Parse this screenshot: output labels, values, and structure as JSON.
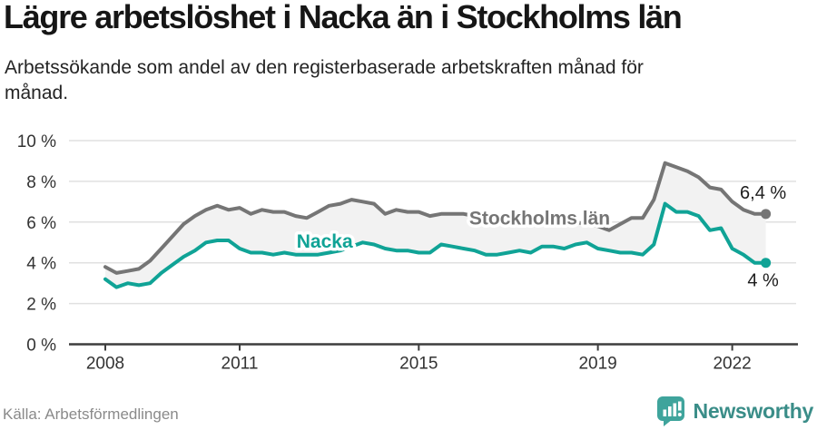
{
  "header": {
    "title": "Lägre arbetslöshet i Nacka än i Stockholms län",
    "subtitle_line1": "Arbetssökande som andel av den registerbaserade arbetskraften månad för",
    "subtitle_line2": "månad."
  },
  "footer": {
    "source": "Källa: Arbetsförmedlingen",
    "brand": "Newsworthy"
  },
  "colors": {
    "nacka": "#10a396",
    "stockholm": "#757575",
    "fill_between": "#f2f2f2",
    "gridline": "#e0e0e0",
    "axis": "#3d3d3d",
    "tick_label": "#333333",
    "end_label": "#1c1c1c",
    "brand_icon": "#3fa49c",
    "brand_text": "#3a8d88"
  },
  "chart_data": {
    "type": "line",
    "title": "Lägre arbetslöshet i Nacka än i Stockholms län",
    "subtitle": "Arbetssökande som andel av den registerbaserade arbetskraften månad för månad.",
    "xlabel": "",
    "ylabel": "",
    "grid": "horizontal",
    "legend": "inline-labels",
    "xlim": [
      2008,
      2022.75
    ],
    "ylim": [
      0,
      10
    ],
    "x_start": 2008,
    "x_step_years": 0.25,
    "y_ticks": [
      {
        "value": 0,
        "label": "0 %"
      },
      {
        "value": 2,
        "label": "2 %"
      },
      {
        "value": 4,
        "label": "4 %"
      },
      {
        "value": 6,
        "label": "6 %"
      },
      {
        "value": 8,
        "label": "8 %"
      },
      {
        "value": 10,
        "label": "10 %"
      }
    ],
    "x_ticks": [
      {
        "year": 2008,
        "label": "2008"
      },
      {
        "year": 2011,
        "label": "2011"
      },
      {
        "year": 2015,
        "label": "2015"
      },
      {
        "year": 2019,
        "label": "2019"
      },
      {
        "year": 2022,
        "label": "2022"
      }
    ],
    "series": [
      {
        "name": "Stockholms län",
        "slug": "stockholms-lan",
        "color": "#757575",
        "end_label": "6,4 %",
        "end_value": 6.4,
        "label_at": {
          "year": 2017.7,
          "value": 6.2
        },
        "values": [
          3.8,
          3.5,
          3.6,
          3.7,
          4.1,
          4.7,
          5.3,
          5.9,
          6.3,
          6.6,
          6.8,
          6.6,
          6.7,
          6.4,
          6.6,
          6.5,
          6.5,
          6.3,
          6.2,
          6.5,
          6.8,
          6.9,
          7.1,
          7.0,
          6.9,
          6.4,
          6.6,
          6.5,
          6.5,
          6.3,
          6.4,
          6.4,
          6.4,
          6.3,
          6.3,
          6.3,
          6.3,
          6.3,
          6.3,
          6.2,
          6.2,
          6.1,
          6.0,
          5.9,
          5.8,
          5.6,
          5.9,
          6.2,
          6.2,
          7.1,
          8.9,
          8.7,
          8.5,
          8.2,
          7.7,
          7.6,
          7.0,
          6.6,
          6.4,
          6.4
        ]
      },
      {
        "name": "Nacka",
        "slug": "nacka",
        "color": "#10a396",
        "end_label": "4 %",
        "end_value": 4.0,
        "label_at": {
          "year": 2012.9,
          "value": 5.05
        },
        "values": [
          3.2,
          2.8,
          3.0,
          2.9,
          3.0,
          3.5,
          3.9,
          4.3,
          4.6,
          5.0,
          5.1,
          5.1,
          4.7,
          4.5,
          4.5,
          4.4,
          4.5,
          4.4,
          4.4,
          4.4,
          4.5,
          4.6,
          4.8,
          5.0,
          4.9,
          4.7,
          4.6,
          4.6,
          4.5,
          4.5,
          4.9,
          4.8,
          4.7,
          4.6,
          4.4,
          4.4,
          4.5,
          4.6,
          4.5,
          4.8,
          4.8,
          4.7,
          4.9,
          5.0,
          4.7,
          4.6,
          4.5,
          4.5,
          4.4,
          4.9,
          6.9,
          6.5,
          6.5,
          6.3,
          5.6,
          5.7,
          4.7,
          4.4,
          4.0,
          4.0
        ]
      }
    ]
  }
}
